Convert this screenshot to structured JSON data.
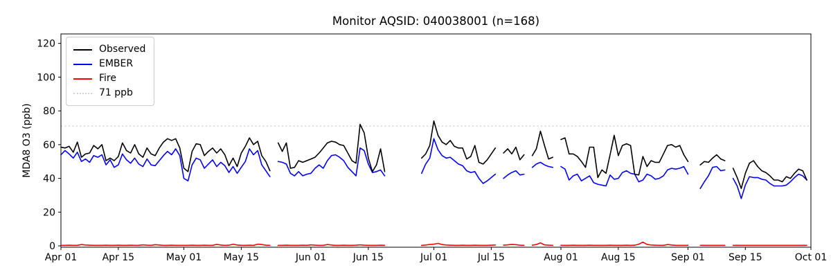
{
  "figure": {
    "title": "Monitor AQSID: 040038001 (n=168)"
  },
  "chart_data": {
    "type": "line",
    "title": "Monitor AQSID: 040038001 (n=168)",
    "xlabel": "",
    "ylabel": "MDA8 O3 (ppb)",
    "grid": false,
    "n_points": 168,
    "x_start_label": "Apr 01",
    "x_end_label": "Oct 01",
    "xlim_days": [
      0,
      183
    ],
    "ylim": [
      -0.8,
      125.6
    ],
    "y_ticks": [
      0,
      20,
      40,
      60,
      80,
      100,
      120
    ],
    "x_ticks": [
      {
        "label": "Apr 01",
        "day": 0
      },
      {
        "label": "Apr 15",
        "day": 14
      },
      {
        "label": "May 01",
        "day": 30
      },
      {
        "label": "May 15",
        "day": 44
      },
      {
        "label": "Jun 01",
        "day": 61
      },
      {
        "label": "Jun 15",
        "day": 75
      },
      {
        "label": "Jul 01",
        "day": 91
      },
      {
        "label": "Jul 15",
        "day": 105
      },
      {
        "label": "Aug 01",
        "day": 122
      },
      {
        "label": "Aug 15",
        "day": 136
      },
      {
        "label": "Sep 01",
        "day": 153
      },
      {
        "label": "Sep 15",
        "day": 167
      },
      {
        "label": "Oct 01",
        "day": 183
      }
    ],
    "threshold": {
      "label": "71 ppb",
      "value": 71,
      "color": "#d3d3d3",
      "dash": "dotted"
    },
    "legend": {
      "position": "upper-left",
      "items": [
        {
          "label": "Observed",
          "color": "#000000",
          "dash": "solid"
        },
        {
          "label": "EMBER",
          "color": "#0000ff",
          "dash": "solid"
        },
        {
          "label": "Fire",
          "color": "#ff0000",
          "dash": "solid"
        },
        {
          "label": "71 ppb",
          "color": "#d3d3d3",
          "dash": "dotted"
        }
      ]
    },
    "series": [
      {
        "name": "Observed",
        "color": "#000000",
        "values": [
          58.5,
          58,
          59,
          55.5,
          61.5,
          52.5,
          54.5,
          55,
          59.5,
          57.5,
          60,
          50.5,
          52,
          50.5,
          53,
          61,
          56.5,
          55,
          60,
          54.5,
          52.5,
          58,
          54.5,
          53.5,
          58,
          61.5,
          63.5,
          62.5,
          63.5,
          58,
          46,
          44,
          56,
          60.5,
          60,
          53.5,
          56,
          58,
          55,
          57.5,
          54,
          47.5,
          52,
          47,
          55,
          59,
          64,
          60,
          62,
          53.5,
          50,
          44.5,
          null,
          61,
          56,
          61,
          46,
          46.5,
          50.5,
          49.5,
          50.5,
          51.5,
          52.5,
          55,
          58,
          61,
          62,
          61.5,
          60,
          59.5,
          55,
          50.5,
          49,
          72,
          67,
          52,
          44,
          48,
          57.5,
          44,
          null,
          null,
          null,
          null,
          null,
          null,
          null,
          null,
          52,
          54.5,
          59.5,
          74,
          65.5,
          61.5,
          60,
          62.5,
          59,
          58,
          58,
          51.5,
          53,
          59.5,
          49.5,
          48.5,
          51,
          54.5,
          58,
          null,
          55,
          57.5,
          54.5,
          58.5,
          51,
          54,
          null,
          53.5,
          57.5,
          68,
          59.5,
          51.5,
          52.5,
          null,
          63,
          64,
          54.5,
          54.5,
          53,
          50,
          46.5,
          58.5,
          58.5,
          40.5,
          45,
          43,
          54,
          65.5,
          53.5,
          59.5,
          60.5,
          59.5,
          42.5,
          42,
          53,
          47,
          50.5,
          49.5,
          49.5,
          54.5,
          59.5,
          60,
          58.5,
          59.5,
          54,
          50,
          null,
          null,
          48,
          50,
          49.5,
          52,
          54,
          51.5,
          50.5,
          null,
          46,
          40.5,
          34,
          43,
          49,
          50.5,
          47,
          44.5,
          43.5,
          41.5,
          39,
          39,
          38,
          41,
          40,
          43,
          45.5,
          44.5,
          39
        ]
      },
      {
        "name": "EMBER",
        "color": "#0000ff",
        "values": [
          54,
          56.5,
          54.5,
          52,
          55.5,
          50,
          51.5,
          49.5,
          53.5,
          52.5,
          54,
          48,
          51,
          46.5,
          48,
          54.5,
          51,
          49,
          52,
          48.5,
          47,
          51.5,
          48,
          47.5,
          50.5,
          53.5,
          56,
          54,
          57.5,
          53.5,
          40,
          38.5,
          48,
          52,
          51,
          46,
          48.5,
          51,
          47,
          49.5,
          47.5,
          43.5,
          47,
          43,
          46.5,
          50,
          57.5,
          54,
          56.5,
          48,
          44.5,
          41,
          null,
          50,
          49.5,
          48.5,
          43,
          41.5,
          44,
          41.5,
          42.5,
          43,
          46,
          48,
          46,
          50.5,
          53.5,
          54,
          52.5,
          50.5,
          46.5,
          44,
          41.5,
          58,
          56.5,
          48.5,
          43.5,
          44,
          45,
          41.5,
          null,
          null,
          null,
          null,
          null,
          null,
          null,
          null,
          43,
          48.5,
          52,
          63.5,
          57,
          53.5,
          52,
          52.5,
          50.5,
          48.5,
          47.5,
          44.5,
          43.5,
          44,
          40,
          37,
          38.5,
          40.5,
          42.5,
          null,
          40,
          42,
          43.5,
          44.5,
          42,
          42.5,
          null,
          46.5,
          48.5,
          49.5,
          48,
          47,
          46.5,
          null,
          47,
          45.5,
          39,
          41.5,
          42.5,
          38.5,
          40,
          41.5,
          37.5,
          36.5,
          36,
          35.5,
          42,
          39.5,
          40,
          43.5,
          44.5,
          43,
          42.5,
          38,
          39,
          42.5,
          41.5,
          39.5,
          40,
          41.5,
          45,
          46,
          45.5,
          46,
          47,
          42.5,
          null,
          null,
          34,
          38,
          41.5,
          46.5,
          47,
          44.5,
          45,
          null,
          40,
          35.5,
          28,
          36,
          41,
          40.5,
          40.5,
          39.5,
          39,
          37,
          35.5,
          35.5,
          35.5,
          36,
          38,
          40.5,
          42.5,
          41.5,
          39
        ]
      },
      {
        "name": "Fire",
        "color": "#ff0000",
        "values": [
          0.3,
          0.3,
          0.4,
          0.3,
          0.3,
          0.8,
          0.5,
          0.4,
          0.3,
          0.3,
          0.3,
          0.4,
          0.3,
          0.3,
          0.4,
          0.3,
          0.3,
          0.4,
          0.3,
          0.3,
          0.6,
          0.4,
          0.3,
          0.7,
          0.5,
          0.3,
          0.3,
          0.4,
          0.3,
          0.3,
          0.3,
          0.3,
          0.4,
          0.3,
          0.3,
          0.4,
          0.3,
          0.3,
          0.9,
          0.5,
          0.3,
          0.4,
          1.0,
          0.5,
          0.3,
          0.3,
          0.4,
          0.3,
          1.0,
          0.8,
          0.4,
          0.3,
          null,
          0.3,
          0.3,
          0.4,
          0.3,
          0.3,
          0.3,
          0.4,
          0.3,
          0.6,
          0.4,
          0.3,
          0.3,
          0.8,
          0.5,
          0.3,
          0.3,
          0.4,
          0.3,
          0.3,
          0.4,
          0.6,
          0.4,
          0.3,
          0.3,
          0.3,
          0.4,
          0.3,
          null,
          null,
          null,
          null,
          null,
          null,
          null,
          null,
          0.3,
          0.5,
          0.8,
          1.0,
          1.5,
          0.8,
          0.5,
          0.4,
          0.3,
          0.3,
          0.4,
          0.3,
          0.3,
          0.4,
          0.3,
          0.3,
          0.3,
          0.4,
          0.5,
          null,
          0.4,
          0.6,
          0.9,
          0.7,
          0.4,
          0.3,
          null,
          0.4,
          0.8,
          1.8,
          0.6,
          0.4,
          0.3,
          null,
          0.3,
          0.3,
          0.3,
          0.4,
          0.3,
          0.3,
          0.3,
          0.4,
          0.3,
          0.3,
          0.3,
          0.3,
          0.4,
          0.3,
          0.3,
          0.3,
          0.4,
          0.3,
          0.4,
          1.0,
          2.2,
          0.9,
          0.5,
          0.4,
          0.3,
          0.3,
          0.8,
          0.5,
          0.3,
          0.3,
          0.3,
          0.3,
          null,
          null,
          0.3,
          0.3,
          0.3,
          0.3,
          0.3,
          0.3,
          0.3,
          null,
          0.3,
          0.3,
          0.3,
          0.3,
          0.3,
          0.3,
          0.3,
          0.3,
          0.3,
          0.3,
          0.3,
          0.3,
          0.3,
          0.3,
          0.3,
          0.3,
          0.3,
          0.3,
          0.3
        ]
      }
    ]
  }
}
